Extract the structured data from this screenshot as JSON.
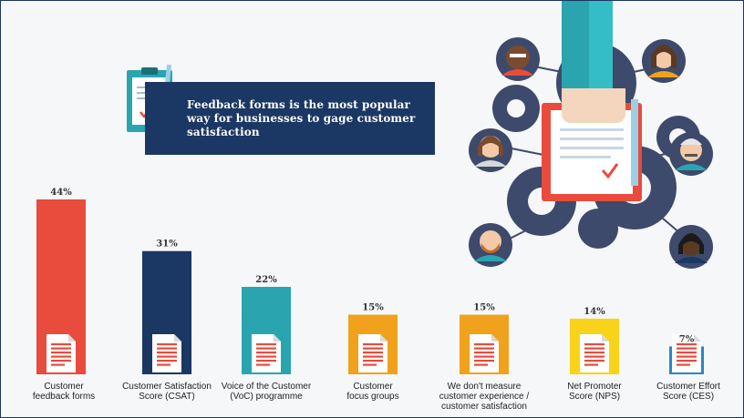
{
  "header": {
    "title": "Feedback forms is the most popular way for businesses to gage customer satisfaction"
  },
  "chart_data": {
    "type": "bar",
    "title": "Feedback forms is the most popular way for businesses to gage customer satisfaction",
    "unit": "%",
    "ylim": [
      0,
      44
    ],
    "categories": [
      "Customer\nfeedback forms",
      "Customer Satisfaction\nScore (CSAT)",
      "Voice of the Customer\n(VoC) programme",
      "Customer\nfocus groups",
      "We don't measure\ncustomer experience /\ncustomer satisfaction",
      "Net Promoter\nScore (NPS)",
      "Customer Effort\nScore (CES)"
    ],
    "values": [
      44,
      31,
      22,
      15,
      15,
      14,
      7
    ],
    "value_labels": [
      "44%",
      "31%",
      "22%",
      "15%",
      "15%",
      "14%",
      "7%"
    ],
    "colors": [
      "#e94b3c",
      "#1b3764",
      "#2aa5b0",
      "#f0a21d",
      "#f0a21d",
      "#f8d31a",
      "#2b86c6"
    ]
  }
}
